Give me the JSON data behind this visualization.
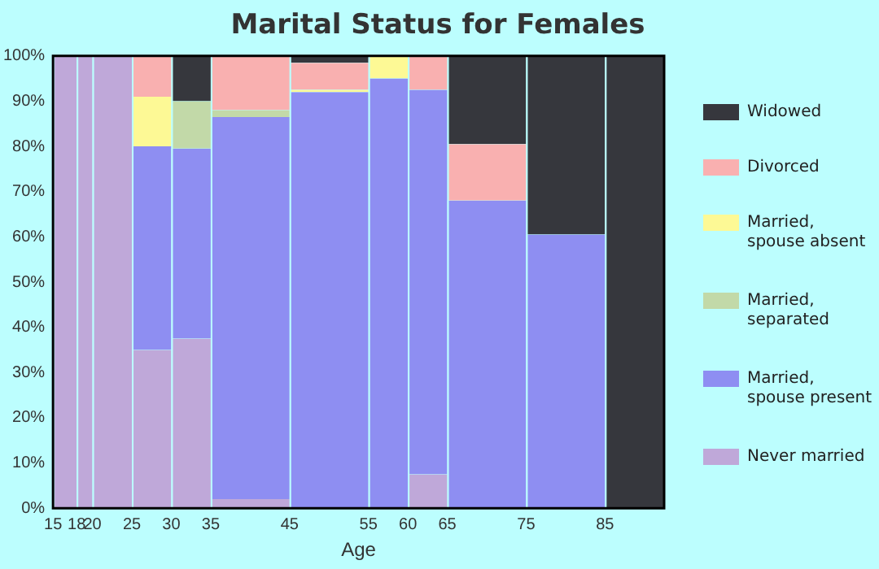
{
  "chart_data": {
    "type": "bar",
    "title": "Marital Status for Females",
    "xlabel": "Age",
    "stacked": true,
    "legend": "right",
    "grid": false,
    "x": [
      16.5,
      19,
      22.5,
      27.5,
      32.5,
      40,
      50,
      57.5,
      62.5,
      70,
      80,
      88.75
    ],
    "xlim": [
      15,
      92.5
    ],
    "xticks": [
      15,
      18,
      20,
      25,
      30,
      35,
      45,
      55,
      60,
      65,
      75,
      85
    ],
    "ylim": [
      0,
      100
    ],
    "yticks": [
      {
        "value": 0,
        "label": "0%"
      },
      {
        "value": 10,
        "label": "10%"
      },
      {
        "value": 20,
        "label": "20%"
      },
      {
        "value": 30,
        "label": "30%"
      },
      {
        "value": 40,
        "label": "40%"
      },
      {
        "value": 50,
        "label": "50%"
      },
      {
        "value": 60,
        "label": "60%"
      },
      {
        "value": 70,
        "label": "70%"
      },
      {
        "value": 80,
        "label": "80%"
      },
      {
        "value": 90,
        "label": "90%"
      },
      {
        "value": 100,
        "label": "100%"
      }
    ],
    "series": [
      {
        "name": "Never married",
        "color": "#bfa8d9",
        "values": [
          100,
          100,
          100,
          35,
          37.5,
          2,
          0,
          0,
          7.5,
          0,
          0,
          0
        ]
      },
      {
        "name": "Married, spouse present",
        "color": "#8e8ef2",
        "values": [
          0,
          0,
          0,
          45,
          42,
          84.5,
          92,
          95,
          85,
          68,
          60.5,
          0
        ]
      },
      {
        "name": "Married, separated",
        "color": "#c2d9a8",
        "values": [
          0,
          0,
          0,
          0,
          10.5,
          1.5,
          0,
          0,
          0,
          0,
          0,
          0
        ]
      },
      {
        "name": "Married, spouse absent",
        "color": "#fdf995",
        "values": [
          0,
          0,
          0,
          11,
          0,
          0,
          0.5,
          5,
          0,
          0,
          0,
          0
        ]
      },
      {
        "name": "Divorced",
        "color": "#f9b0b0",
        "values": [
          0,
          0,
          0,
          9,
          0,
          12,
          6,
          0,
          7.5,
          12.5,
          0,
          0
        ]
      },
      {
        "name": "Widowed",
        "color": "#36373d",
        "values": [
          0,
          0,
          0,
          0,
          10,
          0,
          1.5,
          0,
          0,
          19.5,
          39.5,
          100
        ]
      }
    ]
  }
}
